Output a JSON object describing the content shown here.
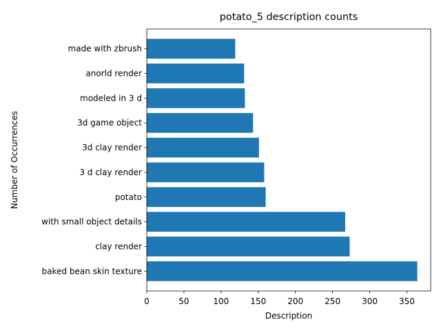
{
  "chart_data": {
    "type": "bar",
    "orientation": "horizontal",
    "title": "potato_5 description counts",
    "xlabel": "Description",
    "ylabel": "Number of Occurrences",
    "categories": [
      "baked bean skin texture",
      "clay render",
      "with small object details",
      "potato",
      "3 d clay render",
      "3d clay render",
      "3d game object",
      "modeled in 3 d",
      "anorld render",
      "made with zbrush"
    ],
    "values": [
      364,
      273,
      267,
      160,
      158,
      151,
      143,
      132,
      131,
      119
    ],
    "xlim": [
      0,
      382
    ],
    "xticks": [
      0,
      50,
      100,
      150,
      200,
      250,
      300,
      350
    ],
    "bar_color": "#1f77b4",
    "grid": false,
    "legend": "none"
  }
}
